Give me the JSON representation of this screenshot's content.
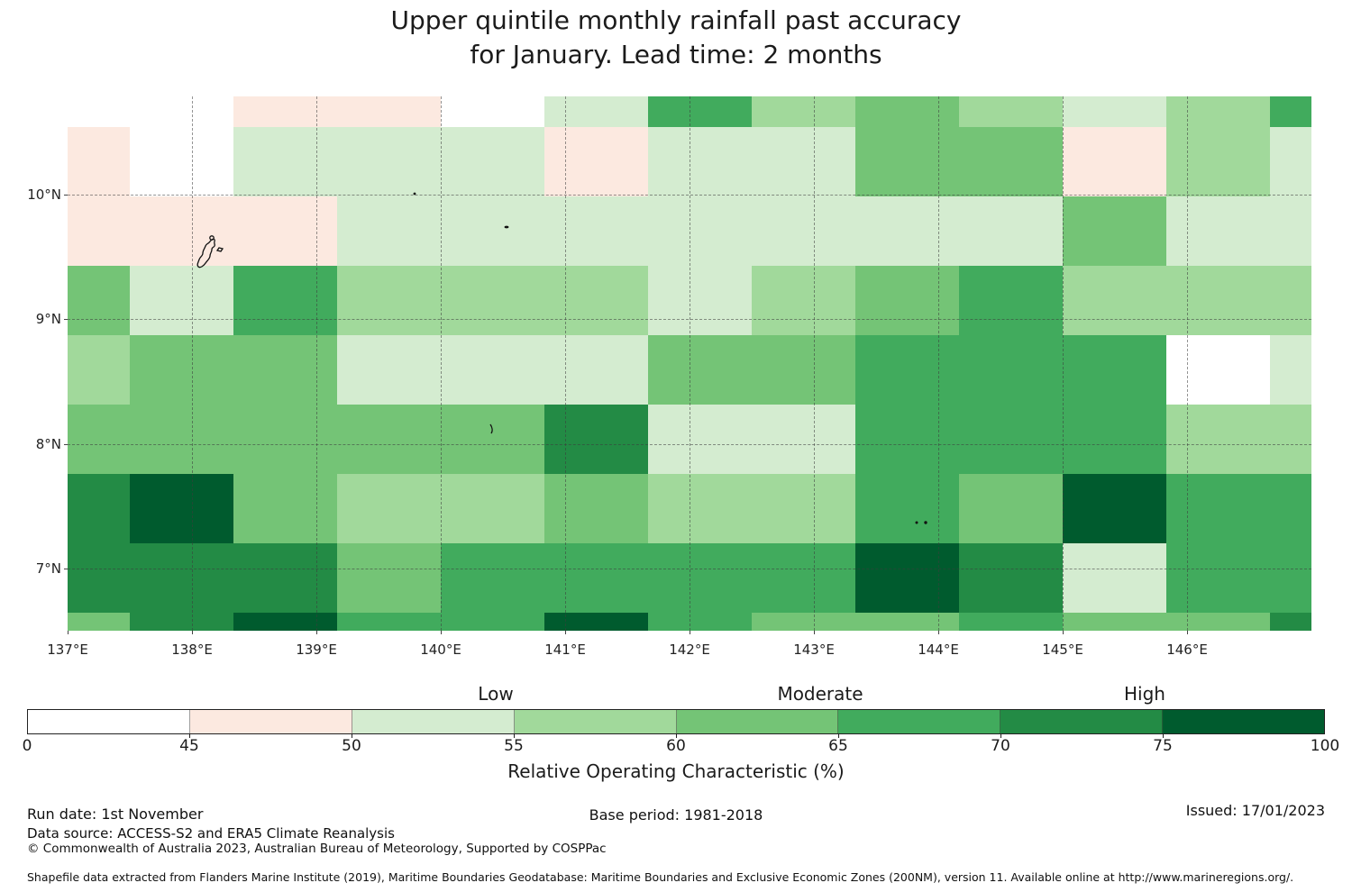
{
  "title": {
    "line1": "Upper quintile monthly rainfall past accuracy",
    "line2": "for January. Lead time: 2 months"
  },
  "chart_data": {
    "type": "heatmap",
    "title": "Upper quintile monthly rainfall past accuracy for January. Lead time: 2 months",
    "x_axis": {
      "unit": "degrees east",
      "tick_values": [
        137,
        138,
        139,
        140,
        141,
        142,
        143,
        144,
        145,
        146
      ],
      "tick_labels": [
        "137°E",
        "138°E",
        "139°E",
        "140°E",
        "141°E",
        "142°E",
        "143°E",
        "144°E",
        "145°E",
        "146°E"
      ],
      "range": [
        137.0,
        147.0
      ]
    },
    "y_axis": {
      "unit": "degrees north",
      "tick_values": [
        10,
        9,
        8,
        7
      ],
      "tick_labels": [
        "10°N",
        "9°N",
        "8°N",
        "7°N"
      ],
      "range": [
        6.5,
        10.8
      ]
    },
    "grid": "dashed graticule at whole degrees",
    "bins": [
      {
        "range": "0-45",
        "label": "0 to 45 %",
        "color": "#ffffff"
      },
      {
        "range": "45-50",
        "label": "45 to 50 %",
        "color": "#fce9e0"
      },
      {
        "range": "50-55",
        "label": "50 to 55 %",
        "color": "#d4ecd0"
      },
      {
        "range": "55-60",
        "label": "55 to 60 %",
        "color": "#a1d99b"
      },
      {
        "range": "60-65",
        "label": "60 to 65 %",
        "color": "#74c476"
      },
      {
        "range": "65-70",
        "label": "65 to 70 %",
        "color": "#41ab5d"
      },
      {
        "range": "70-75",
        "label": "70 to 75 %",
        "color": "#238b45"
      },
      {
        "range": "75-100",
        "label": "75 to 100 %",
        "color": "#005b2e"
      }
    ],
    "cells_note": "bin index per grid cell, 9 rows (north to south, 10.8N-6.5S span) x 13 columns (137E-147E)",
    "cells": [
      [
        0,
        0,
        1,
        1,
        0,
        2,
        5,
        3,
        4,
        3,
        2,
        3,
        5
      ],
      [
        1,
        0,
        2,
        2,
        2,
        1,
        2,
        2,
        4,
        4,
        1,
        3,
        2
      ],
      [
        1,
        1,
        1,
        2,
        2,
        2,
        2,
        2,
        2,
        2,
        4,
        2,
        2
      ],
      [
        4,
        2,
        5,
        3,
        3,
        3,
        2,
        3,
        4,
        5,
        3,
        3,
        3
      ],
      [
        3,
        4,
        4,
        2,
        2,
        2,
        4,
        4,
        5,
        5,
        5,
        0,
        2
      ],
      [
        4,
        4,
        4,
        4,
        4,
        6,
        2,
        2,
        5,
        5,
        5,
        3,
        3
      ],
      [
        6,
        7,
        4,
        3,
        3,
        4,
        3,
        3,
        5,
        4,
        7,
        5,
        5
      ],
      [
        6,
        6,
        6,
        4,
        5,
        5,
        5,
        5,
        7,
        6,
        2,
        5,
        5
      ],
      [
        4,
        6,
        7,
        5,
        5,
        7,
        5,
        4,
        4,
        5,
        4,
        4,
        6
      ]
    ],
    "colorbar": {
      "zone_labels": [
        {
          "label": "Low",
          "boundary_index": 3
        },
        {
          "label": "Moderate",
          "boundary_index": 5
        },
        {
          "label": "High",
          "boundary_index": 7
        }
      ],
      "tick_labels": [
        "0",
        "45",
        "50",
        "55",
        "60",
        "65",
        "70",
        "75",
        "100"
      ],
      "axis_label": "Relative Operating Characteristic (%)"
    }
  },
  "footer": {
    "run_date": "Run date: 1st November",
    "base_period": "Base period: 1981-2018",
    "issued": "Issued: 17/01/2023",
    "data_source": "Data source: ACCESS-S2 and ERA5 Climate Reanalysis",
    "copyright": "© Commonwealth of Australia 2023, Australian Bureau of Meteorology, Supported by COSPPac",
    "shapefile": "Shapefile data extracted from Flanders Marine Institute (2019), Maritime Boundaries Geodatabase: Maritime Boundaries and Exclusive Economic Zones (200NM), version 11. Available online at http://www.marineregions.org/."
  }
}
